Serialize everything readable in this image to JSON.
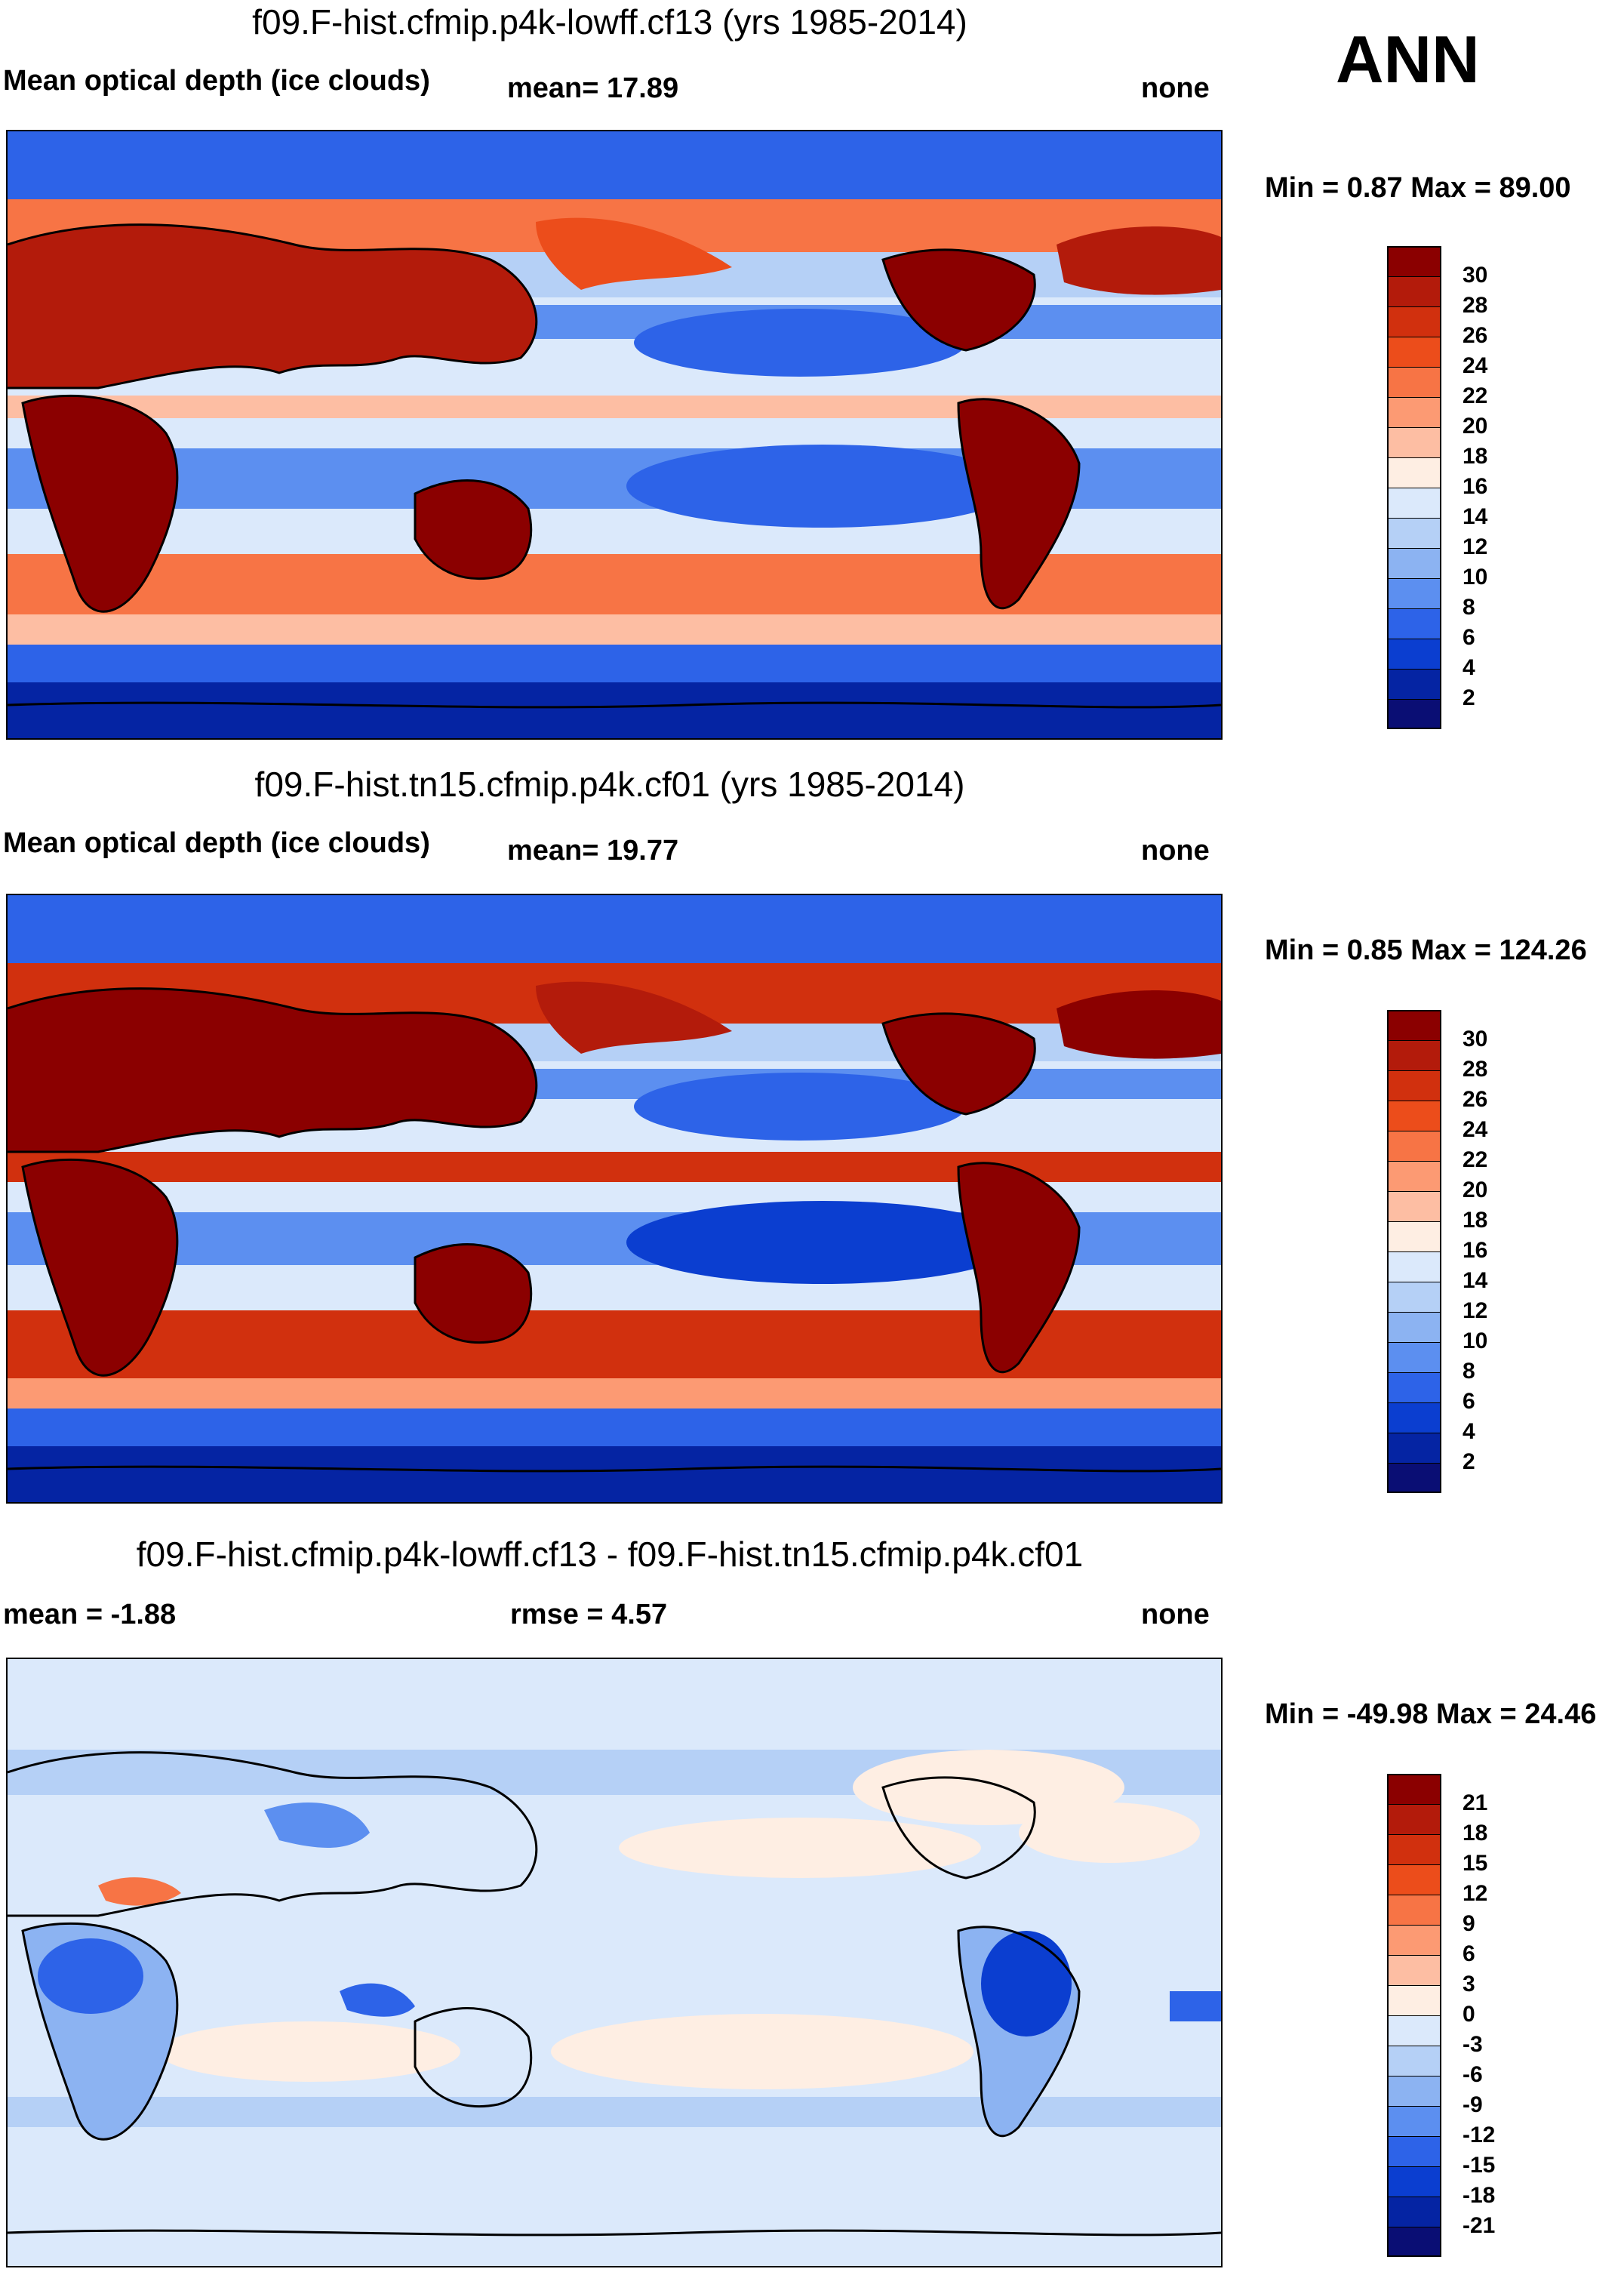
{
  "season": "ANN",
  "panels": [
    {
      "title": "f09.F-hist.cfmip.p4k-lowff.cf13 (yrs 1985-2014)",
      "variable": "Mean optical depth (ice clouds)",
      "stat_left": "mean=  17.89",
      "units": "none",
      "minmax": "Min =   0.87 Max =  89.00",
      "colorbar_labels": [
        "30",
        "28",
        "26",
        "24",
        "22",
        "20",
        "18",
        "16",
        "14",
        "12",
        "10",
        "8",
        "6",
        "4",
        "2"
      ],
      "colorbar_colors": [
        "#8b0000",
        "#b31b0b",
        "#d1300e",
        "#ec4d1b",
        "#f77445",
        "#fc9a73",
        "#fdbea3",
        "#feeee3",
        "#dbe9fb",
        "#b5d0f6",
        "#8cb3f2",
        "#5c8ff0",
        "#2d63e8",
        "#0b3ed0",
        "#0524a3",
        "#0a0e74"
      ]
    },
    {
      "title": "f09.F-hist.tn15.cfmip.p4k.cf01 (yrs 1985-2014)",
      "variable": "Mean optical depth (ice clouds)",
      "stat_left": "mean=  19.77",
      "units": "none",
      "minmax": "Min =   0.85 Max = 124.26",
      "colorbar_labels": [
        "30",
        "28",
        "26",
        "24",
        "22",
        "20",
        "18",
        "16",
        "14",
        "12",
        "10",
        "8",
        "6",
        "4",
        "2"
      ],
      "colorbar_colors": [
        "#8b0000",
        "#b31b0b",
        "#d1300e",
        "#ec4d1b",
        "#f77445",
        "#fc9a73",
        "#fdbea3",
        "#feeee3",
        "#dbe9fb",
        "#b5d0f6",
        "#8cb3f2",
        "#5c8ff0",
        "#2d63e8",
        "#0b3ed0",
        "#0524a3",
        "#0a0e74"
      ]
    },
    {
      "title": "f09.F-hist.cfmip.p4k-lowff.cf13 - f09.F-hist.tn15.cfmip.p4k.cf01",
      "variable": "mean =  -1.88",
      "stat_left": "rmse =    4.57",
      "units": "none",
      "minmax": "Min = -49.98 Max =  24.46",
      "colorbar_labels": [
        "21",
        "18",
        "15",
        "12",
        "9",
        "6",
        "3",
        "0",
        "-3",
        "-6",
        "-9",
        "-12",
        "-15",
        "-18",
        "-21"
      ],
      "colorbar_colors": [
        "#8b0000",
        "#b31b0b",
        "#d1300e",
        "#ec4d1b",
        "#f77445",
        "#fc9a73",
        "#fdbea3",
        "#feeee3",
        "#dbe9fb",
        "#b5d0f6",
        "#8cb3f2",
        "#5c8ff0",
        "#2d63e8",
        "#0b3ed0",
        "#0524a3",
        "#0a0e74"
      ]
    }
  ],
  "chart_data": [
    {
      "type": "heatmap",
      "title": "f09.F-hist.cfmip.p4k-lowff.cf13 (yrs 1985-2014)",
      "variable": "Mean optical depth (ice clouds)",
      "mean": 17.89,
      "min": 0.87,
      "max": 89.0,
      "units": "none",
      "levels": [
        2,
        4,
        6,
        8,
        10,
        12,
        14,
        16,
        18,
        20,
        22,
        24,
        26,
        28,
        30
      ]
    },
    {
      "type": "heatmap",
      "title": "f09.F-hist.tn15.cfmip.p4k.cf01 (yrs 1985-2014)",
      "variable": "Mean optical depth (ice clouds)",
      "mean": 19.77,
      "min": 0.85,
      "max": 124.26,
      "units": "none",
      "levels": [
        2,
        4,
        6,
        8,
        10,
        12,
        14,
        16,
        18,
        20,
        22,
        24,
        26,
        28,
        30
      ]
    },
    {
      "type": "heatmap",
      "title": "f09.F-hist.cfmip.p4k-lowff.cf13 - f09.F-hist.tn15.cfmip.p4k.cf01",
      "mean": -1.88,
      "rmse": 4.57,
      "min": -49.98,
      "max": 24.46,
      "units": "none",
      "levels": [
        -21,
        -18,
        -15,
        -12,
        -9,
        -6,
        -3,
        0,
        3,
        6,
        9,
        12,
        15,
        18,
        21
      ]
    }
  ]
}
